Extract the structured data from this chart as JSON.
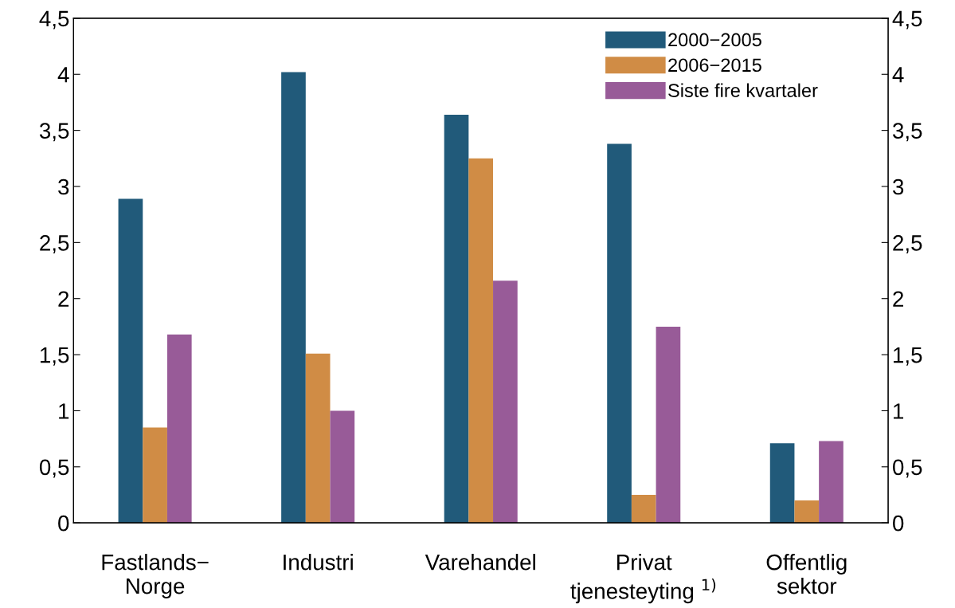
{
  "chart_data": {
    "type": "bar",
    "categories": [
      "Fastlands−\nNorge",
      "Industri",
      "Varehandel",
      "Privat\ntjenesteyting $^{1)}$",
      "Offentlig\nsektor"
    ],
    "series": [
      {
        "name": "2000−2005",
        "color": "#215a7a",
        "values": [
          2.89,
          4.02,
          3.64,
          3.38,
          0.71
        ]
      },
      {
        "name": "2006−2015",
        "color": "#d08c45",
        "values": [
          0.85,
          1.51,
          3.25,
          0.25,
          0.2
        ]
      },
      {
        "name": "Siste fire kvartaler",
        "color": "#985b98",
        "values": [
          1.68,
          1.0,
          2.16,
          1.75,
          0.73
        ]
      }
    ],
    "ylim": [
      0,
      4.5
    ],
    "yticks": [
      0,
      {
        "value": 0.5,
        "label": "0,5"
      },
      1,
      {
        "value": 1.5,
        "label": "1,5"
      },
      2,
      {
        "value": 2.5,
        "label": "2,5"
      },
      3,
      {
        "value": 3.5,
        "label": "3,5"
      },
      4,
      {
        "value": 4.5,
        "label": "4,5"
      }
    ],
    "y2lim": [
      0,
      4.5
    ],
    "y2ticks": [
      0,
      {
        "value": 0.5,
        "label": "0,5"
      },
      1,
      {
        "value": 1.5,
        "label": "1,5"
      },
      2,
      {
        "value": 2.5,
        "label": "2,5"
      },
      3,
      {
        "value": 3.5,
        "label": "3,5"
      },
      4,
      {
        "value": 4.5,
        "label": "4,5"
      }
    ],
    "legend": "top right",
    "grid": false
  }
}
